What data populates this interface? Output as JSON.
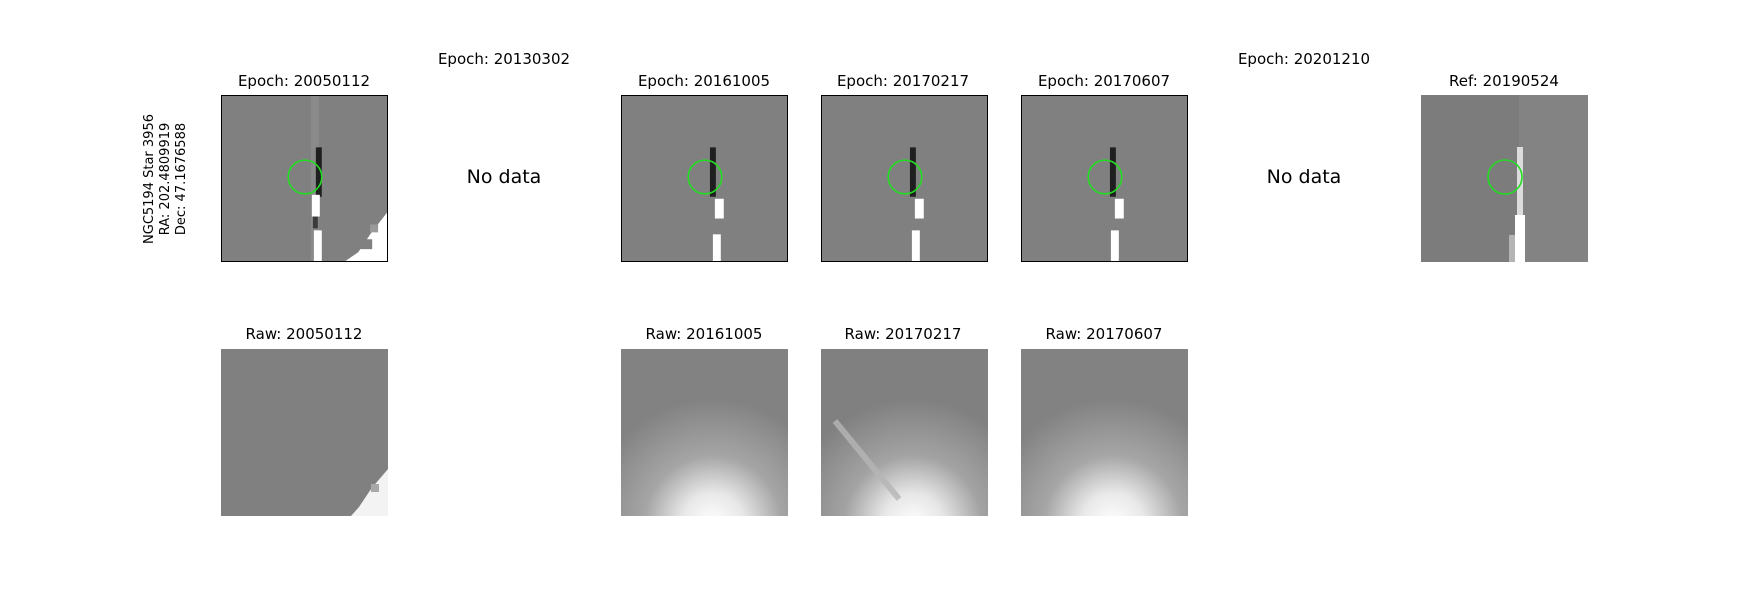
{
  "target": {
    "name": "NGC5194 Star 3956",
    "ra": "RA: 202.4809919",
    "dec": "Dec: 47.1676588"
  },
  "top_row": [
    {
      "label": "Epoch: 20050112",
      "has_data": true
    },
    {
      "label": "Epoch: 20130302",
      "has_data": false,
      "no_data_text": "No data"
    },
    {
      "label": "Epoch: 20161005",
      "has_data": true
    },
    {
      "label": "Epoch: 20170217",
      "has_data": true
    },
    {
      "label": "Epoch: 20170607",
      "has_data": true
    },
    {
      "label": "Epoch: 20201210",
      "has_data": false,
      "no_data_text": "No data"
    },
    {
      "label": "Ref: 20190524",
      "has_data": true
    }
  ],
  "bottom_row": [
    {
      "label": "Raw: 20050112"
    },
    {
      "label": "Raw: 20161005"
    },
    {
      "label": "Raw: 20170217"
    },
    {
      "label": "Raw: 20170607"
    }
  ],
  "colors": {
    "aperture": "#22dd22",
    "background": "#7f7f7f"
  }
}
